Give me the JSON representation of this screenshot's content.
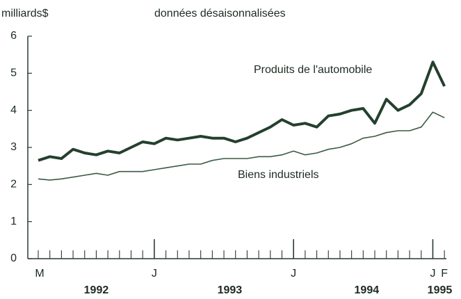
{
  "chart_data": {
    "type": "line",
    "y_label": "milliards$",
    "subtitle": "données désaisonnalisées",
    "categories": [
      "M",
      null,
      null,
      null,
      null,
      null,
      null,
      null,
      null,
      null,
      "J",
      null,
      null,
      null,
      null,
      null,
      null,
      null,
      null,
      null,
      null,
      null,
      "J",
      null,
      null,
      null,
      null,
      null,
      null,
      null,
      null,
      null,
      null,
      null,
      "J",
      "F"
    ],
    "years": [
      "1992",
      "1993",
      "1994",
      "1995"
    ],
    "series": [
      {
        "name": "Produits de l'automobile",
        "color": "#24402e",
        "values": [
          2.65,
          2.75,
          2.7,
          2.95,
          2.85,
          2.8,
          2.9,
          2.85,
          3.0,
          3.15,
          3.1,
          3.25,
          3.2,
          3.25,
          3.3,
          3.25,
          3.25,
          3.15,
          3.25,
          3.4,
          3.55,
          3.75,
          3.6,
          3.65,
          3.55,
          3.85,
          3.9,
          4.0,
          4.05,
          3.65,
          4.3,
          4.0,
          4.15,
          4.45,
          5.3,
          4.65
        ]
      },
      {
        "name": "Biens industriels",
        "color": "#3a5a44",
        "values": [
          2.15,
          2.12,
          2.15,
          2.2,
          2.25,
          2.3,
          2.25,
          2.35,
          2.35,
          2.35,
          2.4,
          2.45,
          2.5,
          2.55,
          2.55,
          2.65,
          2.7,
          2.7,
          2.7,
          2.75,
          2.75,
          2.8,
          2.9,
          2.8,
          2.85,
          2.95,
          3.0,
          3.1,
          3.25,
          3.3,
          3.4,
          3.45,
          3.45,
          3.55,
          3.95,
          3.8
        ]
      }
    ],
    "ylim": [
      0,
      6
    ],
    "yticks": [
      0,
      1,
      2,
      3,
      4,
      5,
      6
    ]
  }
}
